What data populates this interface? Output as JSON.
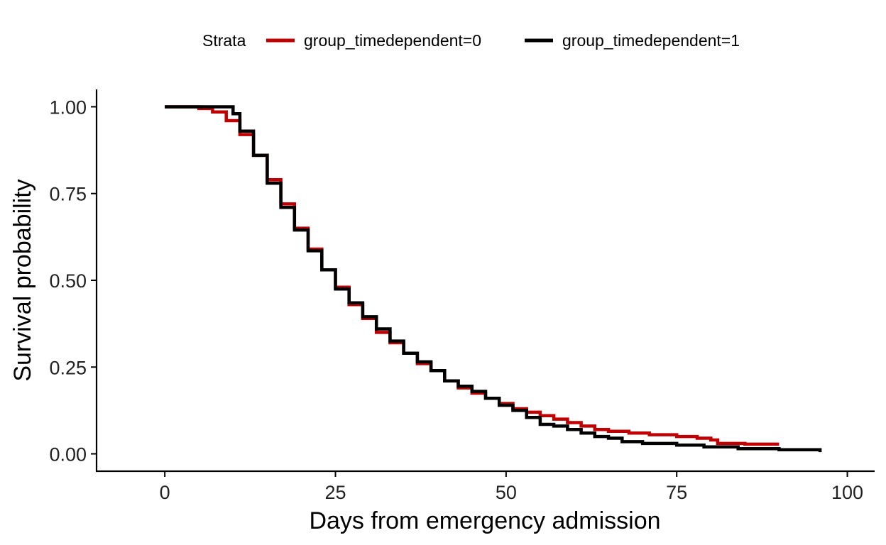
{
  "chart_data": {
    "type": "line",
    "step": true,
    "xlabel": "Days from emergency admission",
    "ylabel": "Survival probability",
    "xlim": [
      -10,
      104
    ],
    "ylim": [
      -0.05,
      1.05
    ],
    "xticks": [
      0,
      25,
      50,
      75,
      100
    ],
    "yticks": [
      0,
      0.25,
      0.5,
      0.75,
      1.0
    ],
    "xtick_labels": [
      "0",
      "25",
      "50",
      "75",
      "100"
    ],
    "ytick_labels": [
      "0.00",
      "0.25",
      "0.50",
      "0.75",
      "1.00"
    ],
    "grid": false,
    "legend": {
      "title": "Strata",
      "position": "top"
    },
    "series": [
      {
        "name": "group_timedependent=0",
        "color": "#c00000",
        "points": [
          [
            0,
            1.0
          ],
          [
            5,
            0.995
          ],
          [
            7,
            0.985
          ],
          [
            9,
            0.96
          ],
          [
            11,
            0.92
          ],
          [
            13,
            0.86
          ],
          [
            15,
            0.79
          ],
          [
            17,
            0.72
          ],
          [
            19,
            0.65
          ],
          [
            21,
            0.59
          ],
          [
            23,
            0.53
          ],
          [
            25,
            0.48
          ],
          [
            27,
            0.43
          ],
          [
            29,
            0.39
          ],
          [
            31,
            0.35
          ],
          [
            33,
            0.32
          ],
          [
            35,
            0.29
          ],
          [
            37,
            0.26
          ],
          [
            39,
            0.24
          ],
          [
            41,
            0.21
          ],
          [
            43,
            0.19
          ],
          [
            45,
            0.175
          ],
          [
            47,
            0.16
          ],
          [
            49,
            0.145
          ],
          [
            51,
            0.13
          ],
          [
            53,
            0.12
          ],
          [
            55,
            0.11
          ],
          [
            57,
            0.1
          ],
          [
            59,
            0.09
          ],
          [
            61,
            0.08
          ],
          [
            63,
            0.07
          ],
          [
            65,
            0.065
          ],
          [
            68,
            0.06
          ],
          [
            71,
            0.055
          ],
          [
            75,
            0.05
          ],
          [
            78,
            0.045
          ],
          [
            80,
            0.04
          ],
          [
            81,
            0.03
          ],
          [
            85,
            0.028
          ],
          [
            90,
            0.028
          ]
        ]
      },
      {
        "name": "group_timedependent=1",
        "color": "#000000",
        "points": [
          [
            0,
            1.0
          ],
          [
            9.6,
            1.0
          ],
          [
            10,
            0.98
          ],
          [
            11,
            0.93
          ],
          [
            13,
            0.86
          ],
          [
            15,
            0.78
          ],
          [
            17,
            0.71
          ],
          [
            19,
            0.645
          ],
          [
            21,
            0.585
          ],
          [
            23,
            0.53
          ],
          [
            25,
            0.475
          ],
          [
            27,
            0.435
          ],
          [
            29,
            0.395
          ],
          [
            31,
            0.36
          ],
          [
            33,
            0.325
          ],
          [
            35,
            0.29
          ],
          [
            37,
            0.265
          ],
          [
            39,
            0.24
          ],
          [
            41,
            0.21
          ],
          [
            43,
            0.195
          ],
          [
            45,
            0.18
          ],
          [
            47,
            0.16
          ],
          [
            49,
            0.14
          ],
          [
            51,
            0.125
          ],
          [
            53,
            0.105
          ],
          [
            55,
            0.085
          ],
          [
            57,
            0.08
          ],
          [
            59,
            0.07
          ],
          [
            61,
            0.06
          ],
          [
            63,
            0.05
          ],
          [
            65,
            0.045
          ],
          [
            67,
            0.035
          ],
          [
            70,
            0.03
          ],
          [
            75,
            0.025
          ],
          [
            79,
            0.02
          ],
          [
            84,
            0.015
          ],
          [
            90,
            0.012
          ],
          [
            96,
            0.01
          ],
          [
            96,
            0.005
          ]
        ]
      }
    ]
  }
}
